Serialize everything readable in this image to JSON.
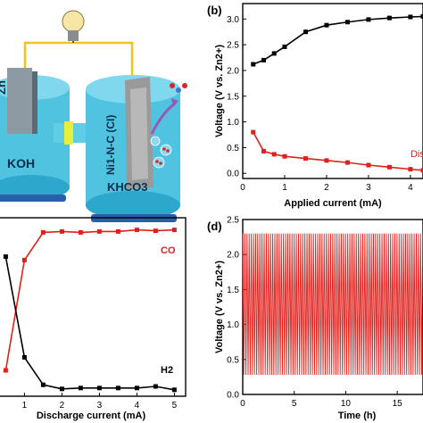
{
  "panel_a": {
    "anode_label": "Zn",
    "anolyte_label": "KOH",
    "cathode_label": "Ni1-N-C (CI)",
    "catholyte_label": "KHCO3"
  },
  "chart_data": [
    {
      "id": "b",
      "panel_label": "(b)",
      "type": "line",
      "xlabel": "Applied current (mA)",
      "ylabel": "Voltage (V vs. Zn2+)",
      "xlim": [
        0,
        4.3
      ],
      "ylim": [
        -0.1,
        3.3
      ],
      "x_ticks": [
        0,
        1,
        2,
        3,
        4
      ],
      "y_ticks": [
        0.0,
        0.5,
        1.0,
        1.5,
        2.0,
        2.5,
        3.0
      ],
      "series": [
        {
          "name": "",
          "color": "#000000",
          "x": [
            0.25,
            0.5,
            0.75,
            1.0,
            1.5,
            2.0,
            2.5,
            3.0,
            3.5,
            4.0,
            4.3
          ],
          "y": [
            2.12,
            2.2,
            2.33,
            2.46,
            2.75,
            2.88,
            2.94,
            2.99,
            3.02,
            3.04,
            3.05
          ]
        },
        {
          "name": "Dis",
          "color": "#e0201c",
          "x": [
            0.25,
            0.5,
            0.75,
            1.0,
            1.5,
            2.0,
            2.5,
            3.0,
            3.5,
            4.0,
            4.3
          ],
          "y": [
            0.8,
            0.43,
            0.37,
            0.33,
            0.29,
            0.25,
            0.21,
            0.16,
            0.12,
            0.08,
            0.06
          ]
        }
      ]
    },
    {
      "id": "c",
      "panel_label": "",
      "type": "line",
      "xlabel": "Discharge current (mA)",
      "ylabel": "",
      "xlim": [
        0.3,
        5.3
      ],
      "ylim": [
        0,
        100
      ],
      "x_ticks": [
        1,
        2,
        3,
        4,
        5
      ],
      "y_ticks": [],
      "series": [
        {
          "name": "CO",
          "color": "#e0201c",
          "x": [
            0.5,
            1.0,
            1.5,
            2.0,
            2.5,
            3.0,
            3.5,
            4.0,
            4.5,
            5.0
          ],
          "y": [
            14.5,
            76.3,
            91.8,
            92.3,
            91.8,
            92.3,
            92.3,
            93.2,
            92.7,
            93.2
          ]
        },
        {
          "name": "H2",
          "color": "#000000",
          "x": [
            0.5,
            1.0,
            1.5,
            2.0,
            2.5,
            3.0,
            3.5,
            4.0,
            4.5,
            5.0
          ],
          "y": [
            78.2,
            21.8,
            6.4,
            4.1,
            4.6,
            4.6,
            4.6,
            4.6,
            5.5,
            3.6
          ]
        }
      ]
    },
    {
      "id": "d",
      "panel_label": "(d)",
      "type": "line",
      "xlabel": "Time (h)",
      "ylabel": "Voltage (V vs. Zn2+)",
      "xlim": [
        0,
        17.5
      ],
      "ylim": [
        0,
        2.5
      ],
      "x_ticks": [
        0,
        5,
        10,
        15
      ],
      "y_ticks": [
        0.0,
        0.5,
        1.0,
        1.5,
        2.0,
        2.5
      ],
      "series": [
        {
          "name": "",
          "color": "#e0201c",
          "cycle_period_h": 0.208,
          "high_V": 2.3,
          "low_V": 0.28
        }
      ]
    }
  ]
}
